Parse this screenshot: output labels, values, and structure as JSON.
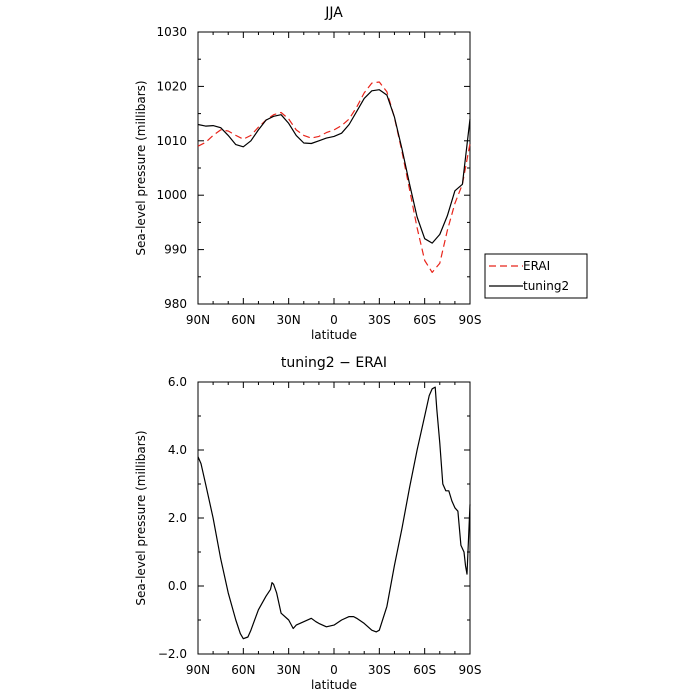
{
  "chart_data": [
    {
      "type": "line",
      "title": "JJA",
      "xlabel": "latitude",
      "ylabel": "Sea-level pressure (millibars)",
      "xlim": [
        90,
        -90
      ],
      "ylim": [
        980,
        1030
      ],
      "x_ticks": [
        90,
        60,
        30,
        0,
        -30,
        -60,
        -90
      ],
      "x_tick_labels": [
        "90N",
        "60N",
        "30N",
        "0",
        "30S",
        "60S",
        "90S"
      ],
      "y_ticks": [
        980,
        990,
        1000,
        1010,
        1020,
        1030
      ],
      "y_tick_labels": [
        "980",
        "990",
        "1000",
        "1010",
        "1020",
        "1030"
      ],
      "grid": false,
      "legend_position": "right, outside plot, lower",
      "series": [
        {
          "name": "ERAI",
          "color": "#e8251b",
          "style": "dashed",
          "x": [
            90,
            85,
            80,
            75,
            70,
            65,
            60,
            55,
            50,
            45,
            40,
            35,
            30,
            25,
            20,
            15,
            10,
            5,
            0,
            -5,
            -10,
            -15,
            -20,
            -25,
            -30,
            -35,
            -40,
            -45,
            -50,
            -55,
            -60,
            -65,
            -70,
            -75,
            -80,
            -85,
            -90
          ],
          "values": [
            1009.0,
            1009.7,
            1011.0,
            1012.0,
            1011.8,
            1011.0,
            1010.3,
            1011.0,
            1012.5,
            1013.8,
            1014.8,
            1015.2,
            1014.0,
            1012.0,
            1011.0,
            1010.5,
            1010.8,
            1011.5,
            1012.0,
            1012.8,
            1014.0,
            1016.2,
            1018.8,
            1020.6,
            1020.8,
            1019.0,
            1014.3,
            1008.0,
            1001.0,
            994.0,
            988.0,
            985.8,
            987.5,
            993.5,
            998.5,
            1002.0,
            1009.5
          ]
        },
        {
          "name": "tuning2",
          "color": "#000000",
          "style": "solid",
          "x": [
            90,
            85,
            80,
            75,
            70,
            65,
            60,
            55,
            50,
            45,
            40,
            35,
            30,
            25,
            20,
            15,
            10,
            5,
            0,
            -5,
            -10,
            -15,
            -20,
            -25,
            -30,
            -35,
            -40,
            -45,
            -50,
            -55,
            -60,
            -65,
            -70,
            -75,
            -80,
            -85,
            -90
          ],
          "values": [
            1013.0,
            1012.7,
            1012.8,
            1012.4,
            1011.0,
            1009.3,
            1008.9,
            1010.0,
            1012.0,
            1013.8,
            1014.5,
            1014.8,
            1013.2,
            1011.0,
            1009.6,
            1009.5,
            1010.0,
            1010.5,
            1010.8,
            1011.4,
            1013.0,
            1015.4,
            1017.8,
            1019.2,
            1019.4,
            1018.4,
            1014.4,
            1008.5,
            1002.0,
            996.0,
            992.0,
            991.2,
            992.8,
            996.2,
            1000.8,
            1002.0,
            1014.0
          ]
        }
      ]
    },
    {
      "type": "line",
      "title": "tuning2 − ERAI",
      "xlabel": "latitude",
      "ylabel": "Sea-level pressure (millibars)",
      "xlim": [
        90,
        -90
      ],
      "ylim": [
        -2.0,
        6.0
      ],
      "x_ticks": [
        90,
        60,
        30,
        0,
        -30,
        -60,
        -90
      ],
      "x_tick_labels": [
        "90N",
        "60N",
        "30N",
        "0",
        "30S",
        "60S",
        "90S"
      ],
      "y_ticks": [
        -2,
        0,
        2,
        4,
        6
      ],
      "y_tick_labels": [
        "−2.0",
        "0.0",
        "2.0",
        "4.0",
        "6.0"
      ],
      "grid": false,
      "series": [
        {
          "color": "#000000",
          "style": "solid",
          "x": [
            90,
            88,
            85,
            82,
            80,
            75,
            70,
            65,
            62,
            60,
            57,
            55,
            50,
            45,
            42,
            41,
            40,
            38,
            35,
            30,
            27,
            25,
            20,
            15,
            12,
            10,
            5,
            0,
            -5,
            -10,
            -13,
            -15,
            -20,
            -25,
            -28,
            -30,
            -35,
            -40,
            -45,
            -50,
            -55,
            -60,
            -63,
            -65,
            -67,
            -68,
            -70,
            -72,
            -74,
            -76,
            -78,
            -80,
            -82,
            -84,
            -86,
            -87,
            -88,
            -90
          ],
          "values": [
            3.8,
            3.6,
            3.0,
            2.4,
            2.0,
            0.8,
            -0.2,
            -1.0,
            -1.4,
            -1.55,
            -1.5,
            -1.3,
            -0.7,
            -0.3,
            -0.1,
            0.1,
            0.05,
            -0.2,
            -0.8,
            -1.0,
            -1.25,
            -1.15,
            -1.05,
            -0.95,
            -1.05,
            -1.1,
            -1.2,
            -1.15,
            -1.0,
            -0.9,
            -0.9,
            -0.95,
            -1.1,
            -1.3,
            -1.35,
            -1.3,
            -0.6,
            0.6,
            1.7,
            2.9,
            4.0,
            5.0,
            5.6,
            5.8,
            5.85,
            5.2,
            4.2,
            3.0,
            2.8,
            2.8,
            2.5,
            2.3,
            2.2,
            1.2,
            1.0,
            0.6,
            0.35,
            2.4
          ]
        }
      ]
    }
  ]
}
